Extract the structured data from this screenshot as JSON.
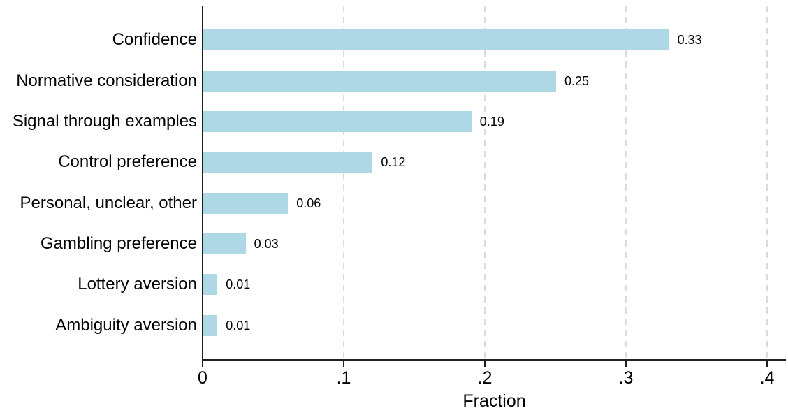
{
  "chart_data": {
    "type": "bar",
    "orientation": "horizontal",
    "title": "",
    "xlabel": "Fraction",
    "ylabel": "",
    "categories": [
      "Confidence",
      "Normative consideration",
      "Signal through examples",
      "Control preference",
      "Personal, unclear, other",
      "Gambling preference",
      "Lottery aversion",
      "Ambiguity aversion"
    ],
    "values": [
      0.33,
      0.25,
      0.19,
      0.12,
      0.06,
      0.03,
      0.01,
      0.01
    ],
    "value_labels": [
      "0.33",
      "0.25",
      "0.19",
      "0.12",
      "0.06",
      "0.03",
      "0.01",
      "0.01"
    ],
    "xlim": [
      0,
      0.42
    ],
    "xticks": [
      0,
      0.1,
      0.2,
      0.3,
      0.4
    ],
    "xtick_labels": [
      "0",
      ".1",
      ".2",
      ".3",
      ".4"
    ],
    "grid": "vertical dashed gridlines at x ticks, behind bars",
    "legend": "none",
    "colors": {
      "bar_fill": "#aed8e6",
      "axis": "#1f1f1f",
      "gridline": "#dcdcdc",
      "text": "#000000",
      "background": "#ffffff"
    }
  }
}
